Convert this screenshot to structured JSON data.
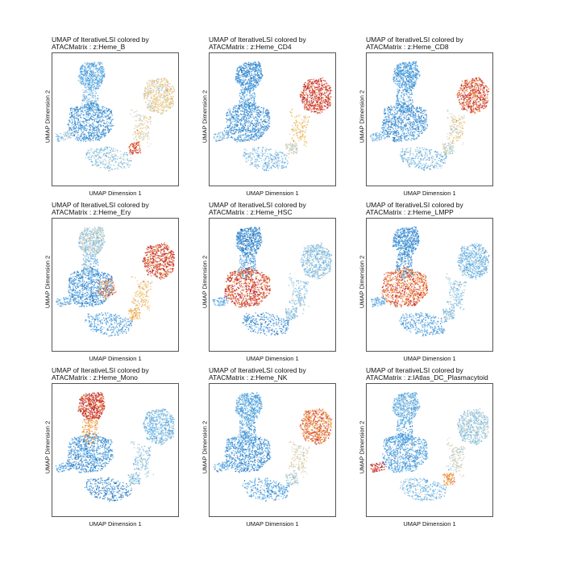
{
  "chart_data": [
    {
      "type": "scatter",
      "title": [
        "UMAP of IterativeLSI colored by",
        "ATACMatrix : z:Heme_B"
      ],
      "xlabel": "UMAP Dimension 1",
      "ylabel": "UMAP Dimension 2",
      "levels": {
        "topcluster": 0.25,
        "stem": 0.3,
        "center": 0.15,
        "right": 0.55,
        "bottomarm": 0.35,
        "bridge": 0.55,
        "node": 0.9,
        "leftspur": 0.35
      }
    },
    {
      "type": "scatter",
      "title": [
        "UMAP of IterativeLSI colored by",
        "ATACMatrix : z:Heme_CD4"
      ],
      "xlabel": "UMAP Dimension 1",
      "ylabel": "UMAP Dimension 2",
      "levels": {
        "topcluster": 0.15,
        "stem": 0.2,
        "center": 0.15,
        "right": 0.92,
        "bottomarm": 0.3,
        "bridge": 0.6,
        "node": 0.5,
        "leftspur": 0.3
      }
    },
    {
      "type": "scatter",
      "title": [
        "UMAP of IterativeLSI colored by",
        "ATACMatrix : z:Heme_CD8"
      ],
      "xlabel": "UMAP Dimension 1",
      "ylabel": "UMAP Dimension 2",
      "levels": {
        "topcluster": 0.2,
        "stem": 0.2,
        "center": 0.15,
        "right": 0.88,
        "bottomarm": 0.3,
        "bridge": 0.55,
        "node": 0.45,
        "leftspur": 0.3
      }
    },
    {
      "type": "scatter",
      "title": [
        "UMAP of IterativeLSI colored by",
        "ATACMatrix : z:Heme_Ery"
      ],
      "xlabel": "UMAP Dimension 1",
      "ylabel": "UMAP Dimension 2",
      "levels": {
        "topcluster": 0.4,
        "stem": 0.3,
        "center": 0.15,
        "right": 0.9,
        "bottomarm": 0.2,
        "bridge": 0.6,
        "node": 0.65,
        "leftspur": 0.25,
        "hotspot": 0.8
      }
    },
    {
      "type": "scatter",
      "title": [
        "UMAP of IterativeLSI colored by",
        "ATACMatrix : z:Heme_HSC"
      ],
      "xlabel": "UMAP Dimension 1",
      "ylabel": "UMAP Dimension 2",
      "levels": {
        "topcluster": 0.12,
        "stem": 0.15,
        "center": 0.9,
        "right": 0.35,
        "bottomarm": 0.15,
        "bridge": 0.35,
        "node": 0.35,
        "leftspur": 0.25
      }
    },
    {
      "type": "scatter",
      "title": [
        "UMAP of IterativeLSI colored by",
        "ATACMatrix : z:Heme_LMPP"
      ],
      "xlabel": "UMAP Dimension 1",
      "ylabel": "UMAP Dimension 2",
      "levels": {
        "topcluster": 0.15,
        "stem": 0.15,
        "center": 0.85,
        "right": 0.3,
        "bottomarm": 0.2,
        "bridge": 0.35,
        "node": 0.35,
        "leftspur": 0.25
      }
    },
    {
      "type": "scatter",
      "title": [
        "UMAP of IterativeLSI colored by",
        "ATACMatrix : z:Heme_Mono"
      ],
      "xlabel": "UMAP Dimension 1",
      "ylabel": "UMAP Dimension 2",
      "levels": {
        "topcluster": 0.92,
        "stem": 0.7,
        "center": 0.15,
        "right": 0.3,
        "bottomarm": 0.12,
        "bridge": 0.35,
        "node": 0.35,
        "leftspur": 0.2
      }
    },
    {
      "type": "scatter",
      "title": [
        "UMAP of IterativeLSI colored by",
        "ATACMatrix : z:Heme_NK"
      ],
      "xlabel": "UMAP Dimension 1",
      "ylabel": "UMAP Dimension 2",
      "levels": {
        "topcluster": 0.25,
        "stem": 0.2,
        "center": 0.15,
        "right": 0.82,
        "bottomarm": 0.2,
        "bridge": 0.5,
        "node": 0.4,
        "leftspur": 0.25
      }
    },
    {
      "type": "scatter",
      "title": [
        "UMAP of IterativeLSI colored by",
        "ATACMatrix : z:IAtlas_DC_Plasmacytoid"
      ],
      "xlabel": "UMAP Dimension 1",
      "ylabel": "UMAP Dimension 2",
      "levels": {
        "topcluster": 0.28,
        "stem": 0.25,
        "center": 0.2,
        "right": 0.38,
        "bottomarm": 0.3,
        "bridge": 0.45,
        "node": 0.75,
        "leftspur": 0.95
      }
    }
  ],
  "palette": [
    "#2166ac",
    "#3d8fd6",
    "#5aaeea",
    "#9ecae1",
    "#d9d2b7",
    "#f3c46a",
    "#f29a3a",
    "#e0552e",
    "#b2182b"
  ]
}
